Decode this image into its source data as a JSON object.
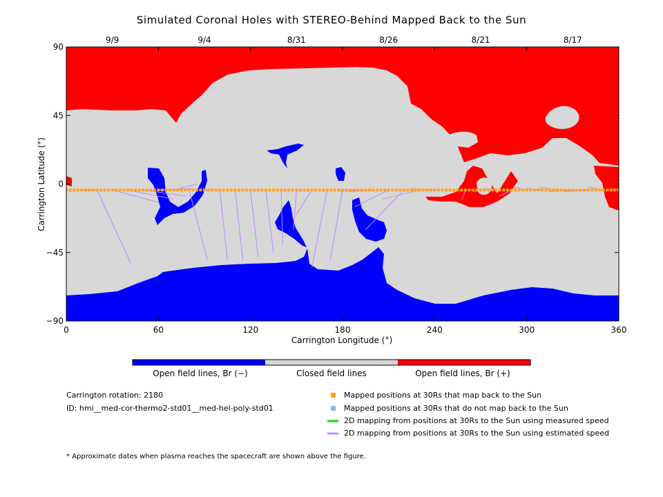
{
  "chart_data": {
    "type": "map",
    "title": "Simulated Coronal Holes with STEREO-Behind Mapped Back to the Sun",
    "xlabel": "Carrington Longitude (°)",
    "ylabel": "Carrington Latitude (°)",
    "xlim": [
      0,
      360
    ],
    "ylim": [
      -90,
      90
    ],
    "x_ticks": [
      "0",
      "60",
      "120",
      "180",
      "240",
      "300",
      "360"
    ],
    "y_ticks": [
      "90",
      "45",
      "0",
      "-45",
      "-90"
    ],
    "top_dates": [
      {
        "label": "9/9",
        "lon": 30
      },
      {
        "label": "9/4",
        "lon": 90
      },
      {
        "label": "8/31",
        "lon": 150
      },
      {
        "label": "8/26",
        "lon": 210
      },
      {
        "label": "8/21",
        "lon": 270
      },
      {
        "label": "8/17",
        "lon": 330
      }
    ],
    "colors": {
      "negative": "#0000ff",
      "closed": "#d8d8d8",
      "positive": "#ff0000",
      "mapped": "#ffa020",
      "unmapped": "#88bbee",
      "measured": "#00dd00",
      "estimated": "#bb88ff"
    },
    "colorbar": [
      {
        "label": "Open field lines, Br (−)",
        "color": "#0000ff"
      },
      {
        "label": "Closed field lines",
        "color": "#d8d8d8"
      },
      {
        "label": "Open field lines, Br (+)",
        "color": "#ff0000"
      }
    ],
    "trajectory_lat": [
      -4,
      -4,
      -4,
      -4,
      -4,
      -4,
      -4,
      -4,
      -4,
      -4,
      -4,
      -4,
      -4,
      -4,
      -4,
      -4,
      -4,
      -4,
      -4,
      -4,
      -4,
      -4,
      -4,
      -4,
      -4,
      -4,
      -4,
      -4,
      -4,
      -4,
      -4,
      -4,
      -4,
      -4,
      -4,
      -4,
      -4
    ],
    "sun_mapped_points": [
      [
        0,
        -2
      ],
      [
        20,
        -4
      ],
      [
        42,
        -52
      ],
      [
        60,
        -12
      ],
      [
        70,
        -10
      ],
      [
        78,
        -8
      ],
      [
        82,
        -3
      ],
      [
        85,
        0
      ],
      [
        92,
        -50
      ],
      [
        95,
        -3
      ],
      [
        105,
        -50
      ],
      [
        115,
        -50
      ],
      [
        125,
        -48
      ],
      [
        135,
        -45
      ],
      [
        141,
        -40
      ],
      [
        148,
        -30
      ],
      [
        150,
        -20
      ],
      [
        160,
        -55
      ],
      [
        172,
        -50
      ],
      [
        178,
        -5
      ],
      [
        184,
        -5
      ],
      [
        188,
        -15
      ],
      [
        195,
        -30
      ],
      [
        206,
        -10
      ],
      [
        225,
        -3
      ],
      [
        250,
        -5
      ],
      [
        258,
        -10
      ],
      [
        266,
        -5
      ],
      [
        272,
        -3
      ],
      [
        282,
        -8
      ],
      [
        292,
        -2
      ],
      [
        300,
        -3
      ],
      [
        308,
        -2
      ],
      [
        315,
        -5
      ],
      [
        325,
        -5
      ],
      [
        340,
        -2
      ],
      [
        356,
        -3
      ]
    ],
    "info": {
      "rotation": "Carrington rotation: 2180",
      "id": "ID: hmi__med-cor-thermo2-std01__med-hel-poly-std01"
    },
    "legend": [
      {
        "type": "square",
        "color": "#ffa020",
        "label": "Mapped positions at 30Rs that map back to the Sun"
      },
      {
        "type": "square",
        "color": "#88bbee",
        "label": "Mapped positions at 30Rs that do not map back to the Sun"
      },
      {
        "type": "line",
        "color": "#00dd00",
        "label": "2D mapping from positions at 30Rs to the Sun using measured speed"
      },
      {
        "type": "line",
        "color": "#bb88ff",
        "label": "2D mapping from positions at 30Rs to the Sun using estimated speed"
      }
    ],
    "footnote": "* Approximate dates when plasma reaches the spacecraft are shown above the figure."
  }
}
